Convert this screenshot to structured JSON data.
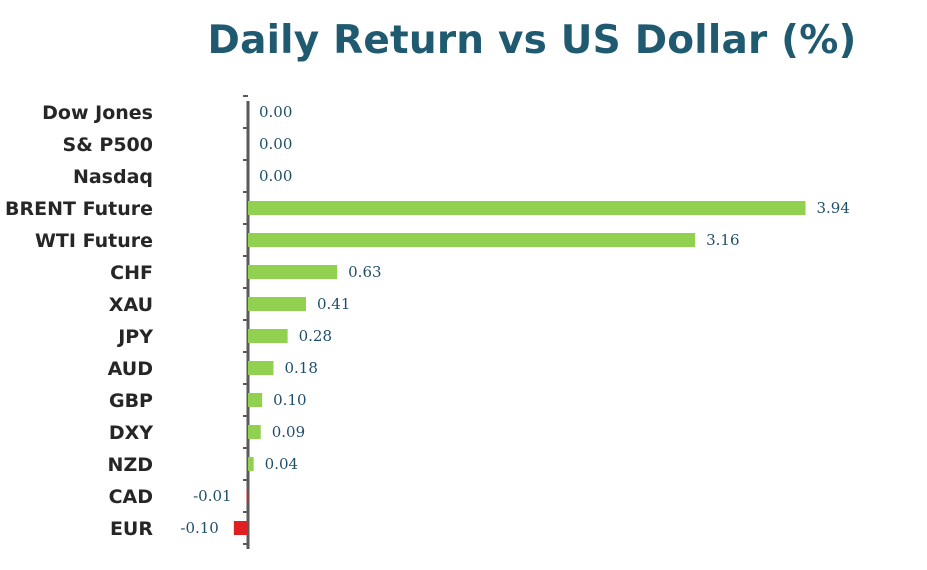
{
  "chart_data": {
    "type": "bar",
    "orientation": "horizontal",
    "title": "Daily Return vs US Dollar (%)",
    "categories": [
      "Dow Jones",
      "S& P500",
      "Nasdaq",
      "BRENT Future",
      "WTI Future",
      "CHF",
      "XAU",
      "JPY",
      "AUD",
      "GBP",
      "DXY",
      "NZD",
      "CAD",
      "EUR"
    ],
    "values": [
      0.0,
      0.0,
      0.0,
      3.94,
      3.16,
      0.63,
      0.41,
      0.28,
      0.18,
      0.1,
      0.09,
      0.04,
      -0.01,
      -0.1
    ],
    "value_labels": [
      "0.00",
      "0.00",
      "0.00",
      "3.94",
      "3.16",
      "0.63",
      "0.41",
      "0.28",
      "0.18",
      "0.10",
      "0.09",
      "0.04",
      "-0.01",
      "-0.10"
    ],
    "xlim": [
      -0.1,
      3.94
    ],
    "grid": false,
    "legend": "none",
    "colors": {
      "positive": "#92d050",
      "negative": "#e02020",
      "axis": "#595959",
      "title": "#1f5a70",
      "category_label": "#262626",
      "value_label": "#1f4e6a"
    }
  }
}
